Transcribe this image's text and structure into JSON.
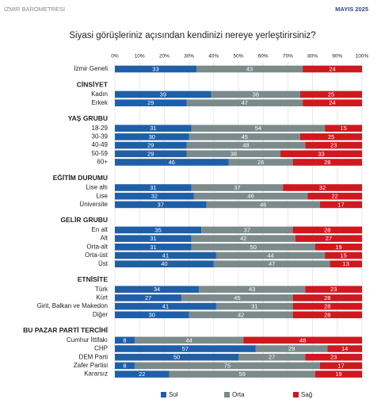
{
  "header": {
    "left": "İZMİR BAROMETRESİ",
    "right": "MAYIS 2025"
  },
  "chart_data": {
    "type": "stacked-bar-horizontal",
    "title": "Siyasi görüşleriniz açısından kendinizi nereye yerleştirirsiniz?",
    "xlim": [
      0,
      100
    ],
    "xticks": [
      {
        "value": 0,
        "label": "0%"
      },
      {
        "value": 10,
        "label": "10%"
      },
      {
        "value": 20,
        "label": "20%"
      },
      {
        "value": 30,
        "label": "30%"
      },
      {
        "value": 40,
        "label": "40%"
      },
      {
        "value": 50,
        "label": "50%"
      },
      {
        "value": 60,
        "label": "60%"
      },
      {
        "value": 70,
        "label": "70%"
      },
      {
        "value": 80,
        "label": "80%"
      },
      {
        "value": 90,
        "label": "90%"
      },
      {
        "value": 100,
        "label": "100%"
      }
    ],
    "grid": true,
    "legend": "bottom",
    "series": [
      {
        "name": "Sol",
        "color": "#1f5fa8"
      },
      {
        "name": "Orta",
        "color": "#7b8a8b"
      },
      {
        "name": "Sağ",
        "color": "#d0181f"
      }
    ],
    "groups": [
      {
        "categories": [
          "İzmir Geneli"
        ],
        "series": [
          [
            33
          ],
          [
            43
          ],
          [
            24
          ]
        ]
      },
      {
        "title": "CİNSİYET",
        "categories": [
          "Kadın",
          "Erkek"
        ],
        "series": [
          [
            39,
            29
          ],
          [
            36,
            47
          ],
          [
            25,
            24
          ]
        ]
      },
      {
        "title": "YAŞ GRUBU",
        "categories": [
          "18-29",
          "30-39",
          "40-49",
          "50-59",
          "60+"
        ],
        "series": [
          [
            31,
            30,
            29,
            29,
            46
          ],
          [
            54,
            45,
            48,
            38,
            26
          ],
          [
            15,
            25,
            23,
            33,
            28
          ]
        ]
      },
      {
        "title": "EĞİTİM DURUMU",
        "categories": [
          "Lise altı",
          "Lise",
          "Üniversite"
        ],
        "series": [
          [
            31,
            32,
            37
          ],
          [
            37,
            46,
            46
          ],
          [
            32,
            22,
            17
          ]
        ]
      },
      {
        "title": "GELİR GRUBU",
        "categories": [
          "En alt",
          "Alt",
          "Orta-alt",
          "Orta-üst",
          "Üst"
        ],
        "series": [
          [
            35,
            31,
            31,
            41,
            40
          ],
          [
            37,
            42,
            50,
            44,
            47
          ],
          [
            28,
            27,
            19,
            15,
            13
          ]
        ]
      },
      {
        "title": "ETNİSİTE",
        "categories": [
          "Türk",
          "Kürt",
          "Girit, Balkan ve Makedon",
          "Diğer"
        ],
        "series": [
          [
            34,
            27,
            41,
            30
          ],
          [
            43,
            45,
            31,
            42
          ],
          [
            23,
            28,
            28,
            28
          ]
        ]
      },
      {
        "title": "BU PAZAR PARTİ TERCİHİ",
        "categories": [
          "Cumhur İttifakı",
          "CHP",
          "DEM Parti",
          "Zafer Partisi",
          "Kararsız"
        ],
        "series": [
          [
            8,
            57,
            50,
            8,
            22
          ],
          [
            44,
            29,
            27,
            75,
            59
          ],
          [
            48,
            14,
            23,
            17,
            19
          ]
        ]
      }
    ]
  }
}
